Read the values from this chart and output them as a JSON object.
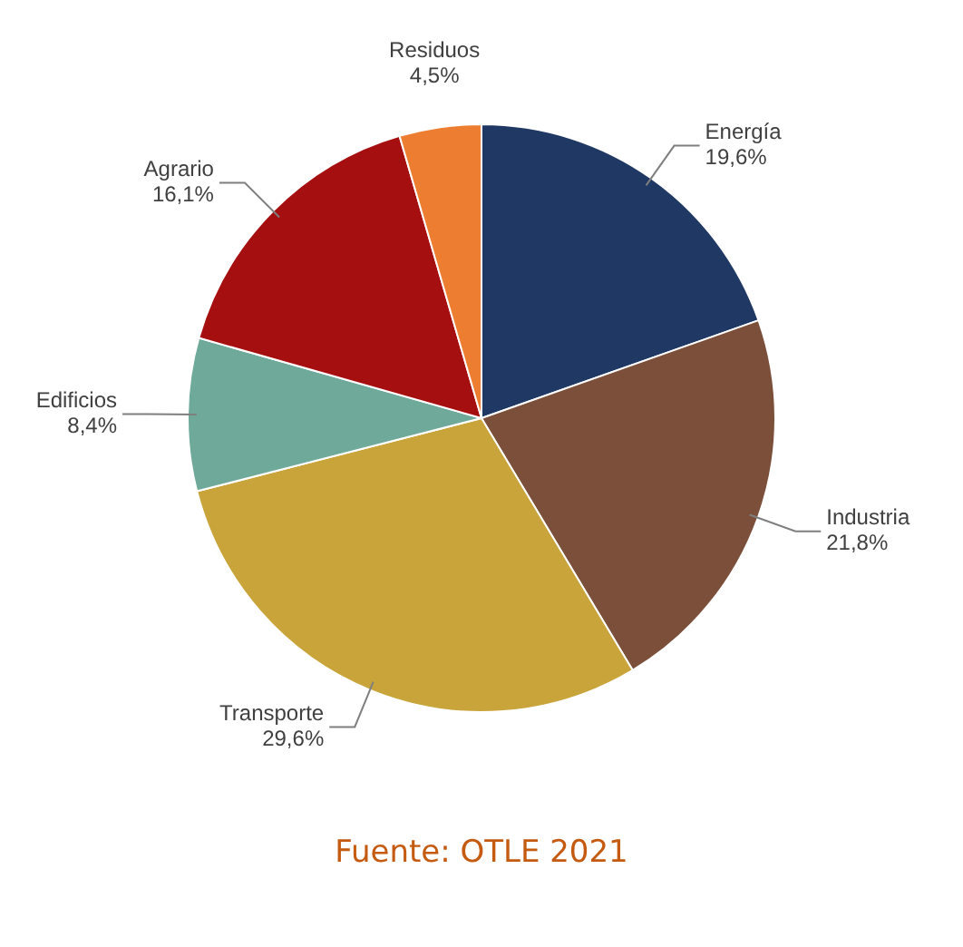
{
  "chart_data": {
    "type": "pie",
    "categories": [
      "Energía",
      "Industria",
      "Transporte",
      "Edificios",
      "Agrario",
      "Residuos"
    ],
    "values": [
      19.6,
      21.8,
      29.6,
      8.4,
      16.1,
      4.5
    ],
    "value_labels": [
      "19,6%",
      "21,8%",
      "29,6%",
      "8,4%",
      "16,1%",
      "4,5%"
    ],
    "colors": [
      "#1f3864",
      "#7b4f3a",
      "#c9a43a",
      "#6fa99a",
      "#a50f0f",
      "#ed7d31"
    ],
    "legend": false,
    "annotations": [
      "Fuente: OTLE 2021"
    ]
  }
}
